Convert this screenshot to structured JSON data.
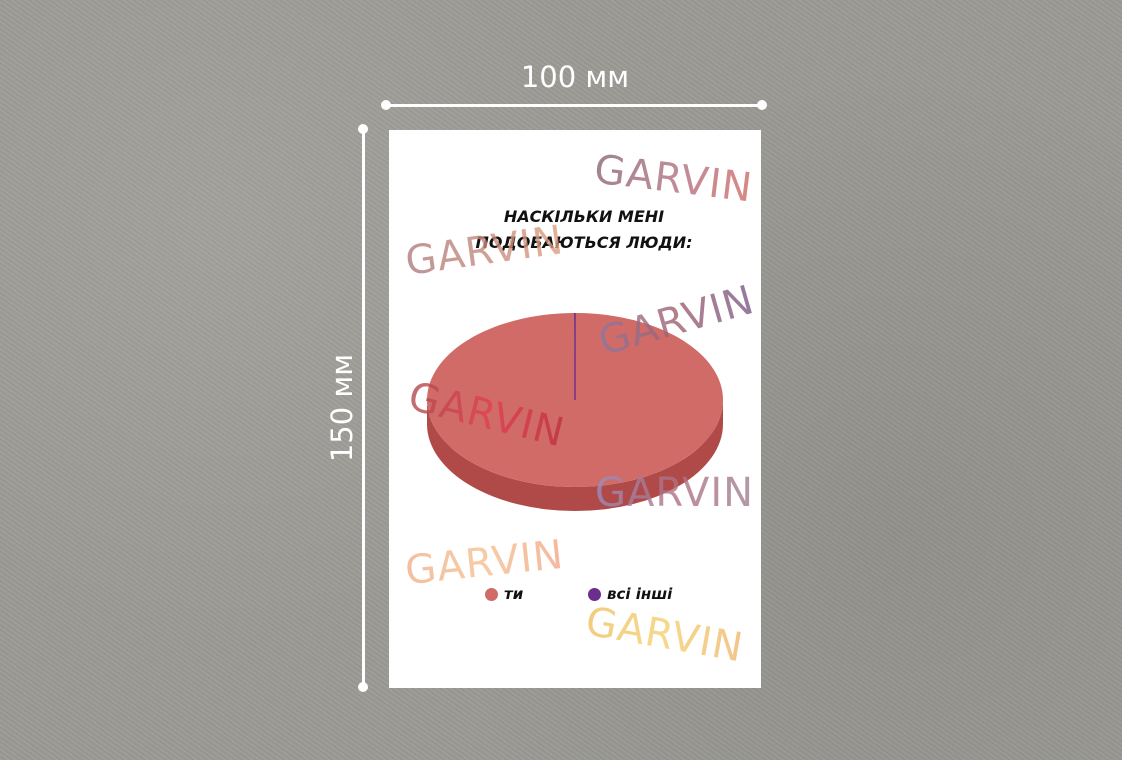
{
  "dimensions": {
    "width_label": "100 мм",
    "height_label": "150 мм"
  },
  "chart_data": {
    "type": "pie",
    "title_lines": [
      "НАСКІЛЬКИ МЕНІ",
      "ПОДОБАЮТЬСЯ ЛЮДИ:"
    ],
    "categories": [
      "ти",
      "всі інші"
    ],
    "values": [
      99.9,
      0.1
    ],
    "colors": [
      "#d06b67",
      "#6b2e8a"
    ],
    "legend_position": "bottom",
    "style": "3d"
  },
  "watermark": {
    "text": "GARVIN"
  },
  "colors": {
    "background": "#9b9a95",
    "card": "#ffffff",
    "pie_side": "#b04a48"
  }
}
